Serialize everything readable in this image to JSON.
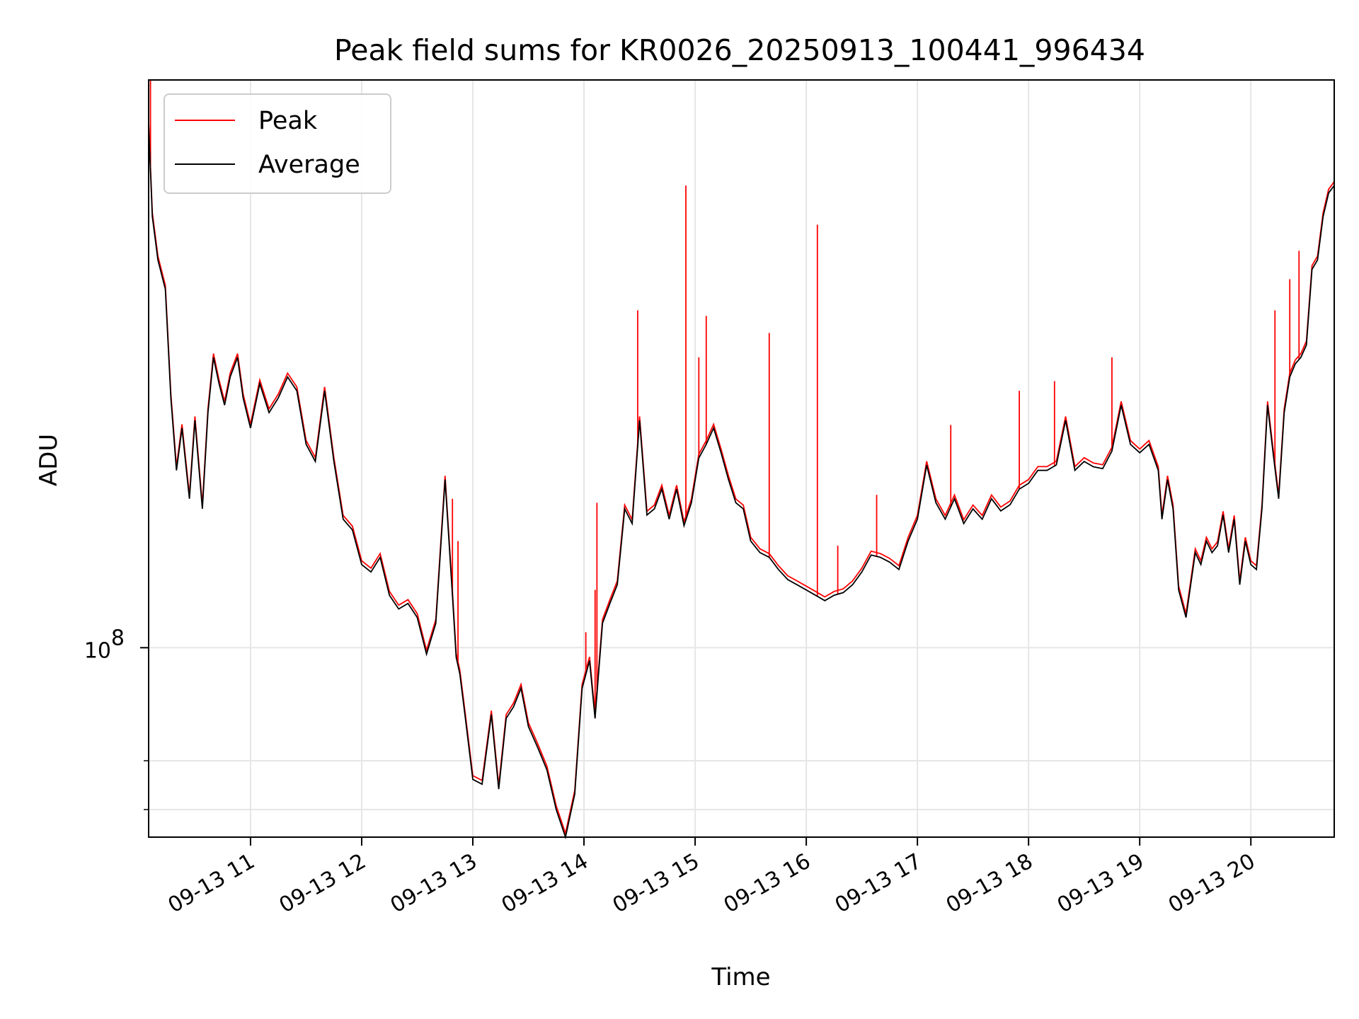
{
  "chart_data": {
    "type": "line",
    "title": "Peak field sums for KR0026_20250913_100441_996434",
    "xlabel": "Time",
    "ylabel": "ADU",
    "yscale": "log",
    "ylim": [
      55000000,
      600000000
    ],
    "xlim": [
      "2025-09-13T10:05",
      "2025-09-13T20:45"
    ],
    "grid": true,
    "legend": {
      "placement": "top-left",
      "entries": [
        "Peak",
        "Average"
      ]
    },
    "colors": {
      "Peak": "#ff0000",
      "Average": "#000000"
    },
    "x_ticks": [
      {
        "label": "09-13 11",
        "value": "2025-09-13T11:00"
      },
      {
        "label": "09-13 12",
        "value": "2025-09-13T12:00"
      },
      {
        "label": "09-13 13",
        "value": "2025-09-13T13:00"
      },
      {
        "label": "09-13 14",
        "value": "2025-09-13T14:00"
      },
      {
        "label": "09-13 15",
        "value": "2025-09-13T15:00"
      },
      {
        "label": "09-13 16",
        "value": "2025-09-13T16:00"
      },
      {
        "label": "09-13 17",
        "value": "2025-09-13T17:00"
      },
      {
        "label": "09-13 18",
        "value": "2025-09-13T18:00"
      },
      {
        "label": "09-13 19",
        "value": "2025-09-13T19:00"
      },
      {
        "label": "09-13 20",
        "value": "2025-09-13T20:00"
      }
    ],
    "y_ticks": [
      {
        "label": "10",
        "exp": "8",
        "value": 100000000
      }
    ],
    "y_minor_ticks": [
      70000000,
      60000000
    ],
    "average": {
      "name": "Average",
      "x": [
        "2025-09-13T10:05",
        "2025-09-13T10:07",
        "2025-09-13T10:10",
        "2025-09-13T10:14",
        "2025-09-13T10:17",
        "2025-09-13T10:20",
        "2025-09-13T10:23",
        "2025-09-13T10:27",
        "2025-09-13T10:30",
        "2025-09-13T10:34",
        "2025-09-13T10:37",
        "2025-09-13T10:40",
        "2025-09-13T10:43",
        "2025-09-13T10:46",
        "2025-09-13T10:49",
        "2025-09-13T10:53",
        "2025-09-13T10:56",
        "2025-09-13T11:00",
        "2025-09-13T11:05",
        "2025-09-13T11:10",
        "2025-09-13T11:15",
        "2025-09-13T11:20",
        "2025-09-13T11:25",
        "2025-09-13T11:30",
        "2025-09-13T11:35",
        "2025-09-13T11:40",
        "2025-09-13T11:45",
        "2025-09-13T11:50",
        "2025-09-13T11:55",
        "2025-09-13T12:00",
        "2025-09-13T12:05",
        "2025-09-13T12:10",
        "2025-09-13T12:15",
        "2025-09-13T12:20",
        "2025-09-13T12:25",
        "2025-09-13T12:30",
        "2025-09-13T12:35",
        "2025-09-13T12:40",
        "2025-09-13T12:45",
        "2025-09-13T12:49",
        "2025-09-13T12:51",
        "2025-09-13T12:53",
        "2025-09-13T12:56",
        "2025-09-13T13:00",
        "2025-09-13T13:05",
        "2025-09-13T13:10",
        "2025-09-13T13:14",
        "2025-09-13T13:18",
        "2025-09-13T13:22",
        "2025-09-13T13:26",
        "2025-09-13T13:30",
        "2025-09-13T13:35",
        "2025-09-13T13:40",
        "2025-09-13T13:45",
        "2025-09-13T13:50",
        "2025-09-13T13:55",
        "2025-09-13T13:59",
        "2025-09-13T14:03",
        "2025-09-13T14:06",
        "2025-09-13T14:10",
        "2025-09-13T14:14",
        "2025-09-13T14:18",
        "2025-09-13T14:22",
        "2025-09-13T14:26",
        "2025-09-13T14:30",
        "2025-09-13T14:34",
        "2025-09-13T14:38",
        "2025-09-13T14:42",
        "2025-09-13T14:46",
        "2025-09-13T14:50",
        "2025-09-13T14:54",
        "2025-09-13T14:58",
        "2025-09-13T15:02",
        "2025-09-13T15:06",
        "2025-09-13T15:10",
        "2025-09-13T15:14",
        "2025-09-13T15:18",
        "2025-09-13T15:22",
        "2025-09-13T15:26",
        "2025-09-13T15:30",
        "2025-09-13T15:35",
        "2025-09-13T15:40",
        "2025-09-13T15:45",
        "2025-09-13T15:50",
        "2025-09-13T15:55",
        "2025-09-13T16:00",
        "2025-09-13T16:05",
        "2025-09-13T16:10",
        "2025-09-13T16:15",
        "2025-09-13T16:20",
        "2025-09-13T16:25",
        "2025-09-13T16:30",
        "2025-09-13T16:35",
        "2025-09-13T16:40",
        "2025-09-13T16:45",
        "2025-09-13T16:50",
        "2025-09-13T16:55",
        "2025-09-13T17:00",
        "2025-09-13T17:05",
        "2025-09-13T17:10",
        "2025-09-13T17:15",
        "2025-09-13T17:20",
        "2025-09-13T17:25",
        "2025-09-13T17:30",
        "2025-09-13T17:35",
        "2025-09-13T17:40",
        "2025-09-13T17:45",
        "2025-09-13T17:50",
        "2025-09-13T17:55",
        "2025-09-13T18:00",
        "2025-09-13T18:05",
        "2025-09-13T18:10",
        "2025-09-13T18:15",
        "2025-09-13T18:20",
        "2025-09-13T18:25",
        "2025-09-13T18:30",
        "2025-09-13T18:35",
        "2025-09-13T18:40",
        "2025-09-13T18:45",
        "2025-09-13T18:50",
        "2025-09-13T18:55",
        "2025-09-13T19:00",
        "2025-09-13T19:05",
        "2025-09-13T19:10",
        "2025-09-13T19:12",
        "2025-09-13T19:15",
        "2025-09-13T19:18",
        "2025-09-13T19:21",
        "2025-09-13T19:25",
        "2025-09-13T19:30",
        "2025-09-13T19:33",
        "2025-09-13T19:36",
        "2025-09-13T19:39",
        "2025-09-13T19:42",
        "2025-09-13T19:45",
        "2025-09-13T19:48",
        "2025-09-13T19:51",
        "2025-09-13T19:54",
        "2025-09-13T19:57",
        "2025-09-13T20:00",
        "2025-09-13T20:03",
        "2025-09-13T20:06",
        "2025-09-13T20:09",
        "2025-09-13T20:12",
        "2025-09-13T20:15",
        "2025-09-13T20:18",
        "2025-09-13T20:21",
        "2025-09-13T20:24",
        "2025-09-13T20:27",
        "2025-09-13T20:30",
        "2025-09-13T20:33",
        "2025-09-13T20:36",
        "2025-09-13T20:39",
        "2025-09-13T20:42",
        "2025-09-13T20:45"
      ],
      "values": [
        520000000,
        390000000,
        340000000,
        310000000,
        220000000,
        175000000,
        200000000,
        160000000,
        205000000,
        155000000,
        210000000,
        250000000,
        230000000,
        215000000,
        235000000,
        250000000,
        220000000,
        200000000,
        230000000,
        210000000,
        220000000,
        235000000,
        225000000,
        190000000,
        180000000,
        225000000,
        180000000,
        150000000,
        145000000,
        130000000,
        127000000,
        133000000,
        118000000,
        113000000,
        115000000,
        110000000,
        98000000,
        108000000,
        170000000,
        118000000,
        97000000,
        92000000,
        80000000,
        66000000,
        65000000,
        81000000,
        64000000,
        80000000,
        83000000,
        88000000,
        78000000,
        73000000,
        68000000,
        60000000,
        55000000,
        63000000,
        88000000,
        96000000,
        80000000,
        108000000,
        115000000,
        122000000,
        155000000,
        148000000,
        205000000,
        152000000,
        155000000,
        165000000,
        150000000,
        165000000,
        147000000,
        158000000,
        182000000,
        190000000,
        200000000,
        185000000,
        170000000,
        158000000,
        155000000,
        140000000,
        135000000,
        133000000,
        128000000,
        124000000,
        122000000,
        120000000,
        118000000,
        116000000,
        118000000,
        119000000,
        122000000,
        127000000,
        134000000,
        133000000,
        131000000,
        128000000,
        140000000,
        150000000,
        178000000,
        158000000,
        150000000,
        160000000,
        148000000,
        155000000,
        150000000,
        160000000,
        154000000,
        157000000,
        165000000,
        168000000,
        175000000,
        175000000,
        178000000,
        205000000,
        175000000,
        180000000,
        177000000,
        176000000,
        186000000,
        215000000,
        190000000,
        185000000,
        190000000,
        175000000,
        150000000,
        170000000,
        155000000,
        120000000,
        110000000,
        135000000,
        130000000,
        140000000,
        135000000,
        138000000,
        152000000,
        135000000,
        150000000,
        122000000,
        140000000,
        130000000,
        128000000,
        155000000,
        215000000,
        185000000,
        160000000,
        210000000,
        235000000,
        245000000,
        250000000,
        260000000,
        330000000,
        340000000,
        390000000,
        420000000,
        430000000
      ]
    },
    "peak_spikes": [
      {
        "x": "2025-09-13T10:06",
        "value": 600000000
      },
      {
        "x": "2025-09-13T12:49",
        "value": 160000000
      },
      {
        "x": "2025-09-13T12:52",
        "value": 140000000
      },
      {
        "x": "2025-09-13T14:01",
        "value": 105000000
      },
      {
        "x": "2025-09-13T14:06",
        "value": 120000000
      },
      {
        "x": "2025-09-13T14:07",
        "value": 158000000
      },
      {
        "x": "2025-09-13T14:29",
        "value": 290000000
      },
      {
        "x": "2025-09-13T14:55",
        "value": 430000000
      },
      {
        "x": "2025-09-13T15:02",
        "value": 250000000
      },
      {
        "x": "2025-09-13T15:06",
        "value": 285000000
      },
      {
        "x": "2025-09-13T15:40",
        "value": 270000000
      },
      {
        "x": "2025-09-13T16:06",
        "value": 380000000
      },
      {
        "x": "2025-09-13T16:17",
        "value": 138000000
      },
      {
        "x": "2025-09-13T16:38",
        "value": 162000000
      },
      {
        "x": "2025-09-13T17:18",
        "value": 202000000
      },
      {
        "x": "2025-09-13T17:55",
        "value": 225000000
      },
      {
        "x": "2025-09-13T18:14",
        "value": 232000000
      },
      {
        "x": "2025-09-13T18:45",
        "value": 250000000
      },
      {
        "x": "2025-09-13T20:13",
        "value": 290000000
      },
      {
        "x": "2025-09-13T20:21",
        "value": 320000000
      },
      {
        "x": "2025-09-13T20:26",
        "value": 350000000
      }
    ]
  }
}
